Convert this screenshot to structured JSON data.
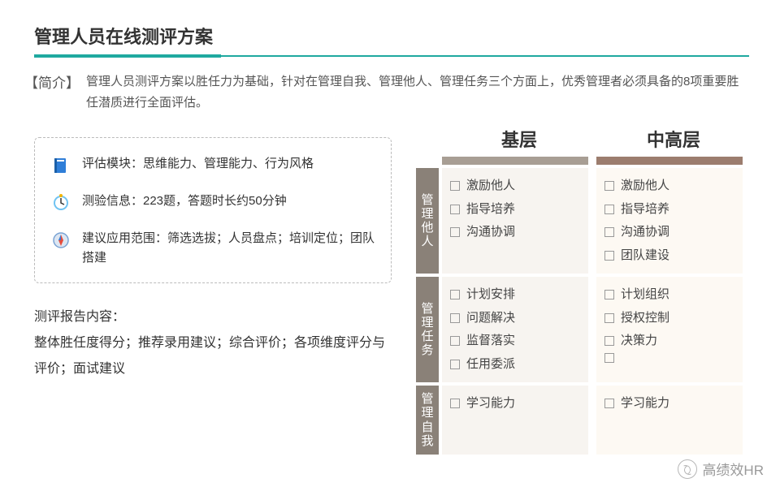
{
  "title": "管理人员在线测评方案",
  "intro": {
    "label": "【简介】",
    "text": "管理人员测评方案以胜任力为基础，针对在管理自我、管理他人、管理任务三个方面上，优秀管理者必须具备的8项重要胜任潜质进行全面评估。"
  },
  "info_box": {
    "items": [
      {
        "icon": "book",
        "text": "评估模块：思维能力、管理能力、行为风格"
      },
      {
        "icon": "clock",
        "text": "测验信息：223题，答题时长约50分钟"
      },
      {
        "icon": "compass",
        "text": "建议应用范围：筛选选拔；人员盘点；培训定位；团队搭建"
      }
    ]
  },
  "report": {
    "heading": "测评报告内容：",
    "body": "整体胜任度得分；推荐录用建议；综合评价；各项维度评分与评价；面试建议"
  },
  "columns": [
    {
      "label": "基层",
      "bar_color": "#a89e94",
      "cell_bg": "#f7f4f0"
    },
    {
      "label": "中高层",
      "bar_color": "#9c7d6e",
      "cell_bg": "#fdf9f3"
    }
  ],
  "rows": [
    {
      "label": "管理他人",
      "cells": [
        [
          "激励他人",
          "指导培养",
          "沟通协调"
        ],
        [
          "激励他人",
          "指导培养",
          "沟通协调",
          "团队建设"
        ]
      ]
    },
    {
      "label": "管理任务",
      "cells": [
        [
          "计划安排",
          "问题解决",
          "监督落实",
          "任用委派"
        ],
        [
          "计划组织",
          "授权控制",
          "决策力",
          ""
        ]
      ]
    },
    {
      "label": "管理自我",
      "cells": [
        [
          "学习能力"
        ],
        [
          "学习能力"
        ]
      ]
    }
  ],
  "watermark": "高绩效HR",
  "colors": {
    "accent": "#1fa9a0",
    "row_label_bg": "#8a8178",
    "text": "#333333"
  },
  "icons": {
    "book": {
      "bg": "#2f7ed8",
      "fg": "#ffffff"
    },
    "clock": {
      "bg": "#f4b400",
      "fg": "#ffffff"
    },
    "compass": {
      "bg": "#7aa3d4",
      "fg": "#ffffff"
    }
  }
}
